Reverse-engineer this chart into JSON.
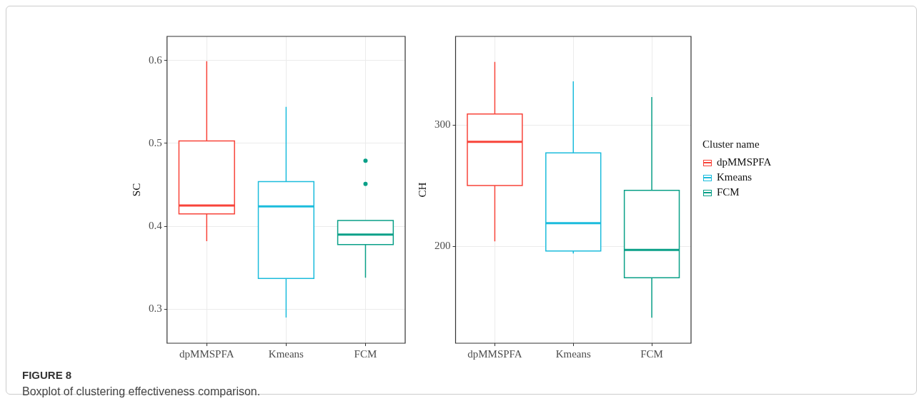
{
  "chart_data": [
    {
      "type": "box",
      "ylabel": "SC",
      "categories": [
        "dpMMSPFA",
        "Kmeans",
        "FCM"
      ],
      "ylim": [
        0.259,
        0.629
      ],
      "yticks": [
        0.3,
        0.4,
        0.5,
        0.6
      ],
      "grid": true,
      "legend": false,
      "series": [
        {
          "color": "#f8443a",
          "boxes": [
            {
              "low": 0.382,
              "q1": 0.415,
              "median": 0.425,
              "q3": 0.503,
              "high": 0.599
            },
            null,
            null
          ]
        },
        {
          "color": "#1cbcdc",
          "boxes": [
            null,
            {
              "low": 0.29,
              "q1": 0.337,
              "median": 0.424,
              "q3": 0.454,
              "high": 0.544
            },
            null
          ]
        },
        {
          "color": "#0aa088",
          "boxes": [
            null,
            null,
            {
              "low": 0.338,
              "q1": 0.378,
              "median": 0.39,
              "q3": 0.407,
              "high": 0.407,
              "outliers": [
                0.451,
                0.479
              ]
            }
          ]
        }
      ]
    },
    {
      "type": "box",
      "ylabel": "CH",
      "categories": [
        "dpMMSPFA",
        "Kmeans",
        "FCM"
      ],
      "ylim": [
        120,
        373
      ],
      "yticks": [
        200,
        300
      ],
      "grid": true,
      "legend": "right",
      "legend_title": "Cluster name",
      "annotations": [
        "FIGURE 8",
        "Boxplot of clustering effectiveness comparison."
      ],
      "series": [
        {
          "name": "dpMMSPFA",
          "color": "#f8443a",
          "boxes": [
            {
              "low": 204,
              "q1": 250,
              "median": 286,
              "q3": 309,
              "high": 352
            },
            null,
            null
          ]
        },
        {
          "name": "Kmeans",
          "color": "#1cbcdc",
          "boxes": [
            null,
            {
              "low": 194,
              "q1": 196,
              "median": 219,
              "q3": 277,
              "high": 336
            },
            null
          ]
        },
        {
          "name": "FCM",
          "color": "#0aa088",
          "boxes": [
            null,
            null,
            {
              "low": 141,
              "q1": 174,
              "median": 197,
              "q3": 246,
              "high": 323
            }
          ]
        }
      ]
    }
  ]
}
